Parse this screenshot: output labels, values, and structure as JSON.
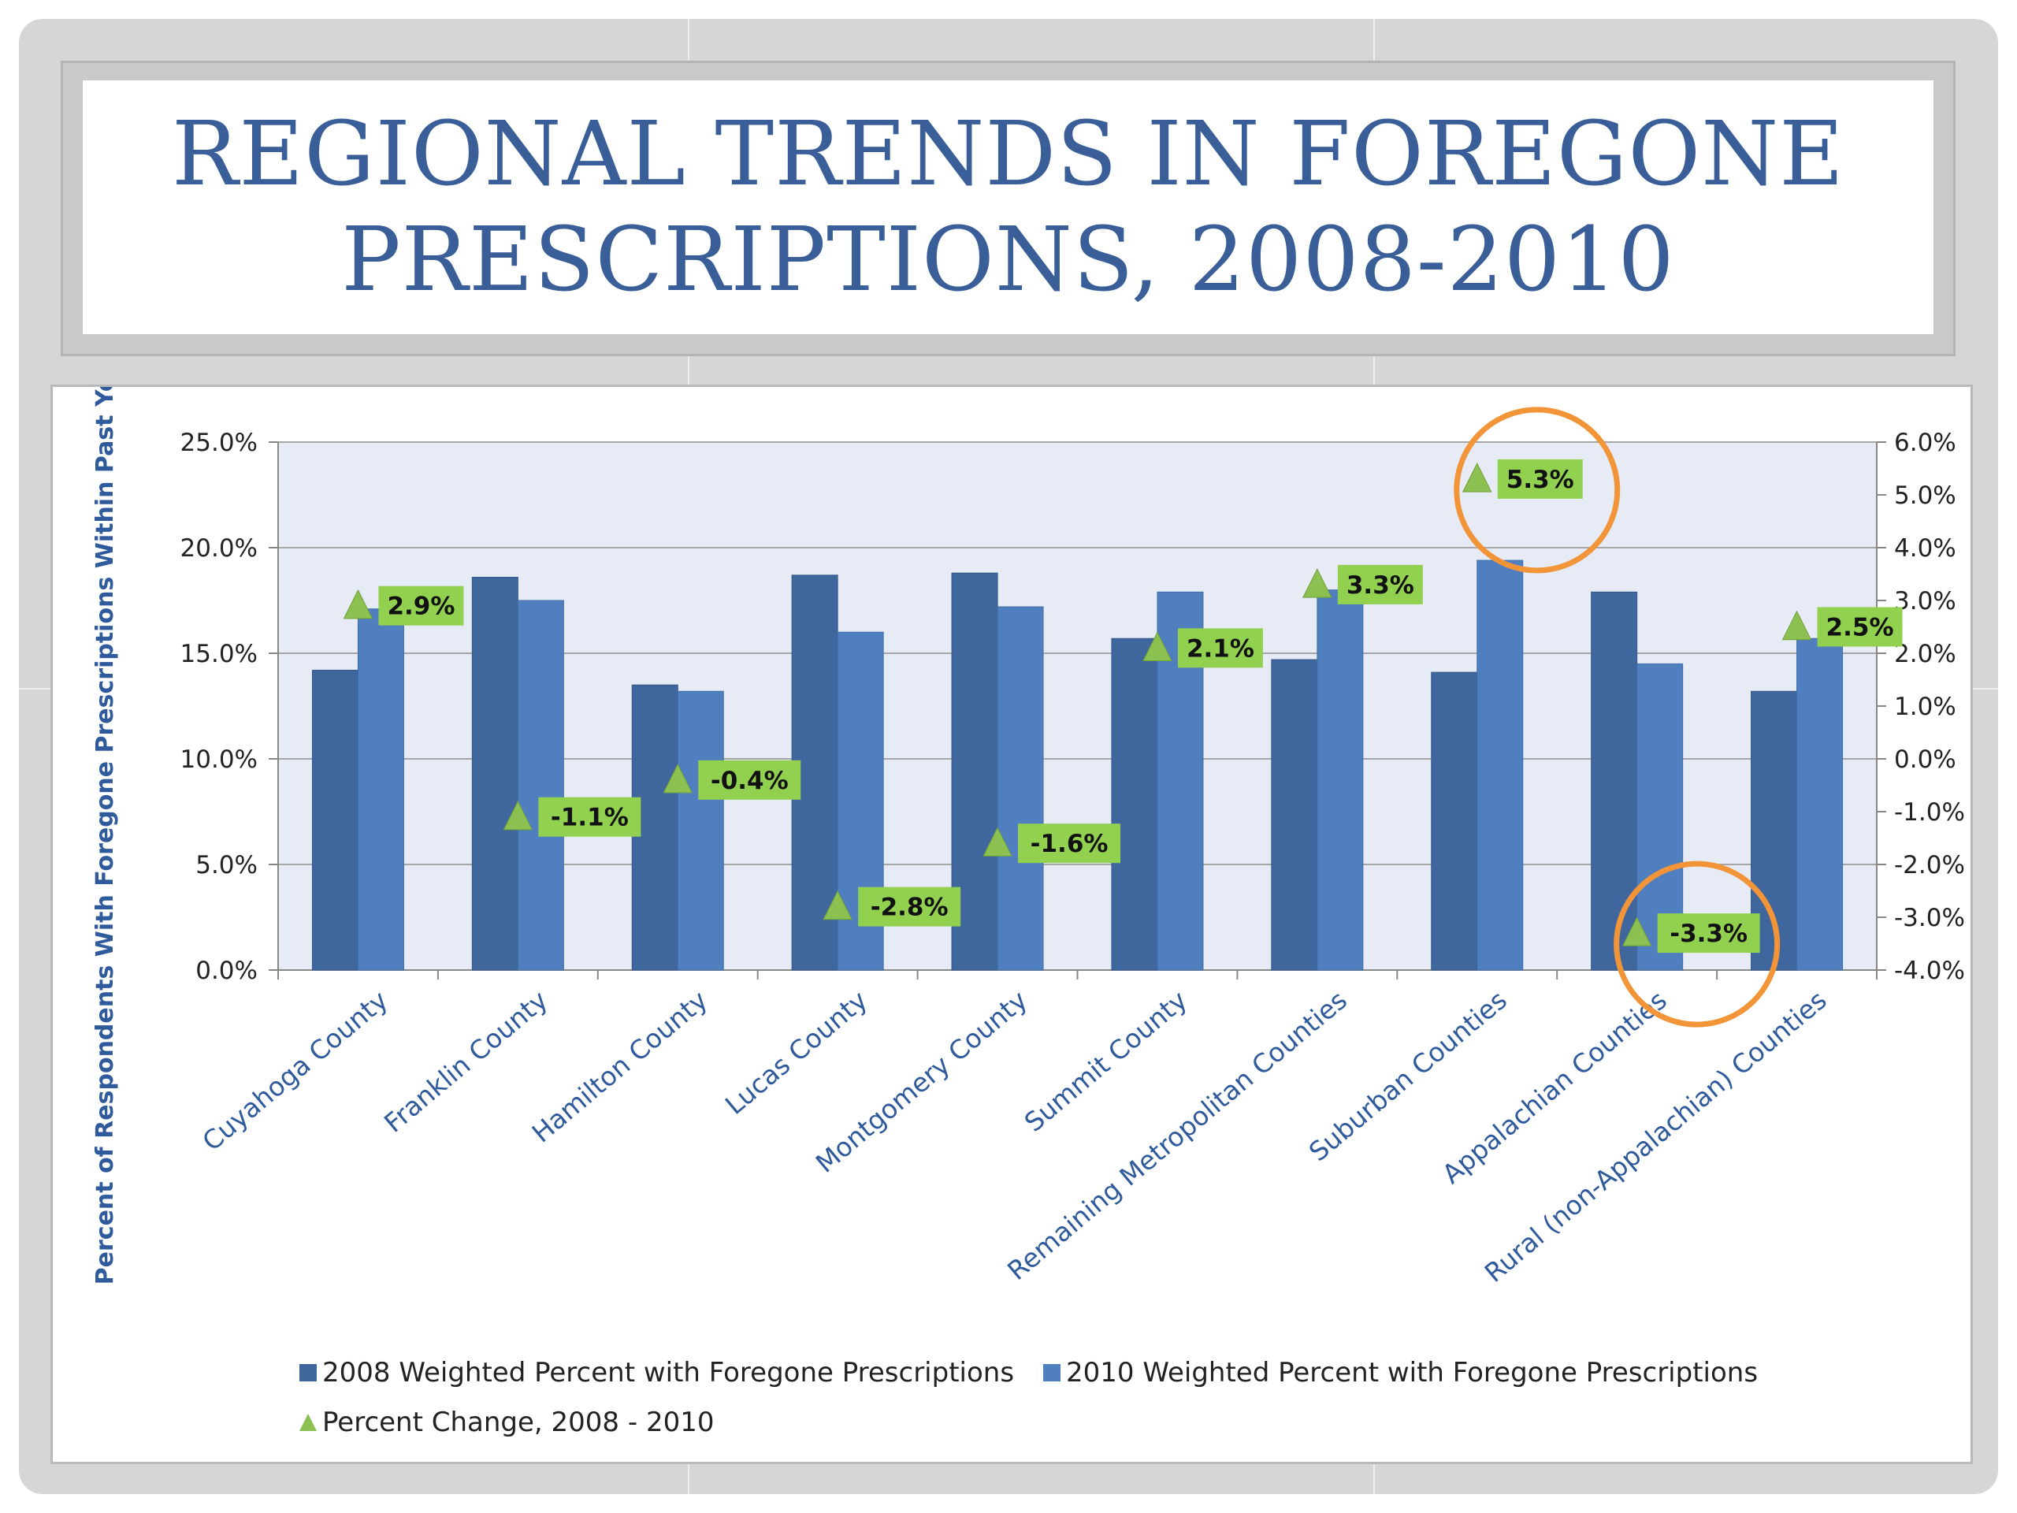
{
  "slide": {
    "title": "REGIONAL TRENDS IN FOREGONE\nPRESCRIPTIONS, 2008-2010"
  },
  "colors": {
    "series_2008": "#3f679e",
    "series_2010": "#4f7fbe",
    "change_marker": "#8cc152",
    "label_box": "#92d050",
    "highlight_circle": "#f29438",
    "plot_bg": "#e6ebf5"
  },
  "chart_data": {
    "type": "bar",
    "title": "",
    "ylabel": "Percent of Respondents With Foregone Prescriptions Within Past Year",
    "xlabel": "",
    "ylim": [
      0,
      25
    ],
    "y_ticks": [
      "0.0%",
      "5.0%",
      "10.0%",
      "15.0%",
      "20.0%",
      "25.0%"
    ],
    "y2lim": [
      -4,
      6
    ],
    "y2_ticks": [
      "-4.0%",
      "-3.0%",
      "-2.0%",
      "-1.0%",
      "0.0%",
      "1.0%",
      "2.0%",
      "3.0%",
      "4.0%",
      "5.0%",
      "6.0%"
    ],
    "grid": true,
    "legend_position": "bottom",
    "categories": [
      "Cuyahoga County",
      "Franklin County",
      "Hamilton County",
      "Lucas County",
      "Montgomery County",
      "Summit County",
      "Remaining Metropolitan Counties",
      "Suburban Counties",
      "Appalachian Counties",
      "Rural (non-Appalachian) Counties"
    ],
    "series": [
      {
        "name": "2008 Weighted Percent with Foregone Prescriptions",
        "type": "bar",
        "axis": "left",
        "values": [
          14.2,
          18.6,
          13.5,
          18.7,
          18.8,
          15.7,
          14.7,
          14.1,
          17.9,
          13.2
        ]
      },
      {
        "name": "2010 Weighted Percent with Foregone Prescriptions",
        "type": "bar",
        "axis": "left",
        "values": [
          17.1,
          17.5,
          13.2,
          16.0,
          17.2,
          17.9,
          18.0,
          19.4,
          14.5,
          15.7
        ]
      },
      {
        "name": "Percent Change, 2008 - 2010",
        "type": "scatter",
        "axis": "right",
        "values": [
          2.9,
          -1.1,
          -0.4,
          -2.8,
          -1.6,
          2.1,
          3.3,
          5.3,
          -3.3,
          2.5
        ],
        "labels": [
          "2.9%",
          "-1.1%",
          "-0.4%",
          "-2.8%",
          "-1.6%",
          "2.1%",
          "3.3%",
          "5.3%",
          "-3.3%",
          "2.5%"
        ]
      }
    ],
    "highlighted_categories": [
      "Suburban Counties",
      "Appalachian Counties"
    ]
  }
}
